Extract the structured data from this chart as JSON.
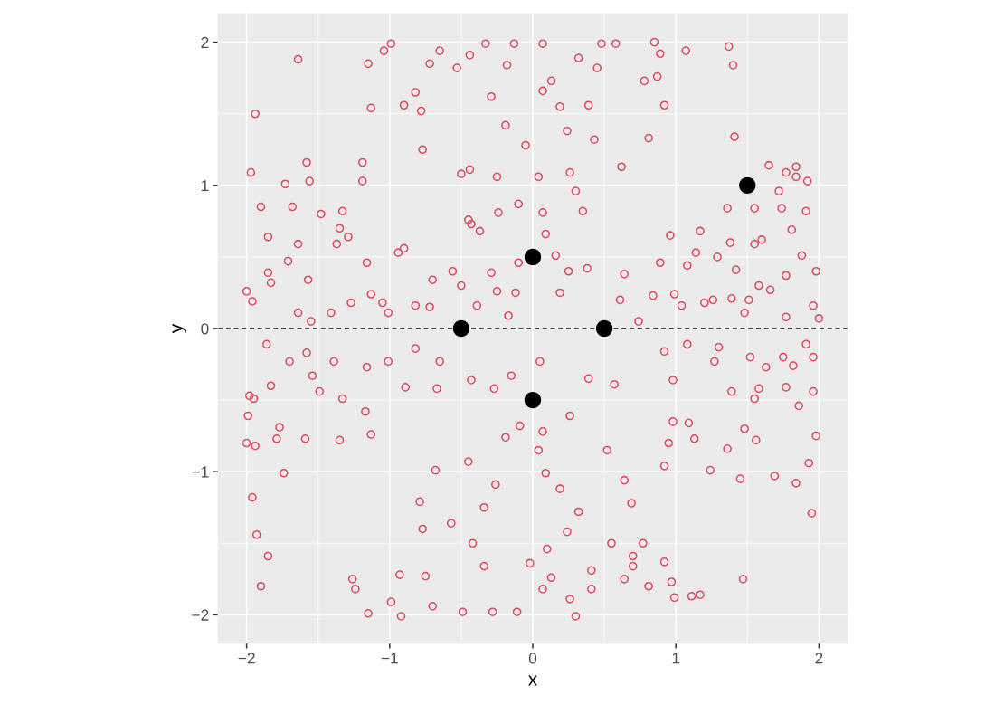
{
  "chart_data": {
    "type": "scatter",
    "xlabel": "x",
    "ylabel": "y",
    "xlim": [
      -2.2,
      2.2
    ],
    "ylim": [
      -2.2,
      2.2
    ],
    "xticks": [
      {
        "value": -2,
        "label": "−2"
      },
      {
        "value": -1,
        "label": "−1"
      },
      0,
      1,
      2
    ],
    "yticks": [
      {
        "value": -2,
        "label": "−2"
      },
      {
        "value": -1,
        "label": "−1"
      },
      0,
      1,
      2
    ],
    "grid": true,
    "marker": "circle",
    "series": [
      {
        "color": "#e34a62",
        "x": [
          -1.64,
          -1.94,
          -0.99,
          -1.04,
          -1.15,
          -1.13,
          -0.72,
          -0.65,
          -0.33,
          -0.13,
          0.07,
          0.32,
          0.48,
          0.58,
          -0.53,
          -0.82,
          -0.9,
          -0.78,
          -0.77,
          -0.5,
          -0.25,
          -0.29,
          -0.19,
          -0.05,
          0.07,
          0.19,
          0.24,
          0.04,
          0.26,
          0.3,
          0.35,
          0.43,
          0.45,
          0.62,
          0.78,
          0.87,
          0.85,
          0.92,
          0.89,
          1.07,
          1.37,
          1.4,
          1.41,
          0.81,
          0.39,
          0.13,
          -0.18,
          -0.44,
          -0.1,
          -0.44,
          1.65,
          1.77,
          1.84,
          1.92,
          1.84,
          1.72,
          1.74,
          1.91,
          1.81,
          1.55,
          1.36,
          1.38,
          1.29,
          1.42,
          1.55,
          1.6,
          1.88,
          1.98,
          1.77,
          1.66,
          1.51,
          1.58,
          1.08,
          1.14,
          1.17,
          0.96,
          0.89,
          0.99,
          1.04,
          0.84,
          0.61,
          0.64,
          0.74,
          1.2,
          1.39,
          1.96,
          2.0,
          1.77,
          1.48,
          1.26,
          0.38,
          0.25,
          0.92,
          0.98,
          1.08,
          1.3,
          1.27,
          1.52,
          1.75,
          1.96,
          1.91,
          1.63,
          1.82,
          1.58,
          1.39,
          1.55,
          1.77,
          1.96,
          1.86,
          1.98,
          1.93,
          1.95,
          1.84,
          1.69,
          1.45,
          1.56,
          1.48,
          1.13,
          0.98,
          0.92,
          1.09,
          0.95,
          1.47,
          1.24,
          1.36,
          0.52,
          0.64,
          0.69,
          0.7,
          0.7,
          0.64,
          0.92,
          0.99,
          1.11,
          1.17,
          0.97,
          0.81,
          0.77,
          0.55,
          0.41,
          0.41,
          0.3,
          0.26,
          0.13,
          0.07,
          -0.02,
          0.1,
          0.24,
          0.32,
          0.19,
          0.09,
          0.04,
          -0.09,
          -0.19,
          -0.26,
          -0.34,
          -0.42,
          -0.34,
          -0.28,
          -0.11,
          -0.49,
          -0.7,
          -0.75,
          -0.93,
          -0.99,
          -0.92,
          -1.15,
          -0.77,
          -0.57,
          -0.79,
          -0.68,
          -0.45,
          -0.27,
          -0.15,
          0.05,
          0.39,
          0.57,
          0.26,
          0.07,
          -1.83,
          -1.95,
          -1.94,
          -1.96,
          -1.93,
          -1.9,
          -1.85,
          -1.26,
          -1.24,
          -1.59,
          -1.79,
          -1.74,
          -2.0,
          -1.99,
          -1.98,
          -1.77,
          -1.49,
          -1.33,
          -1.17,
          -1.13,
          -1.35,
          -1.58,
          -1.7,
          -1.86,
          -1.54,
          -1.39,
          -1.16,
          -1.01,
          -0.82,
          -0.67,
          -0.89,
          -0.65,
          -0.43,
          -1.97,
          -1.9,
          -1.85,
          -1.83,
          -1.96,
          -2.0,
          -1.85,
          -1.73,
          -1.68,
          -1.64,
          -1.57,
          -1.58,
          -1.56,
          -1.71,
          -1.48,
          -1.33,
          -1.35,
          -1.29,
          -1.37,
          -1.19,
          -1.19,
          -1.16,
          -1.13,
          -0.94,
          -0.9,
          -1.27,
          -1.05,
          -1.41,
          -1.55,
          -1.64,
          -0.82,
          -0.7,
          -0.56,
          -0.5,
          -0.72,
          -1.01,
          -0.43,
          -0.45,
          -0.37,
          -0.29,
          -0.25,
          -0.12,
          -0.1,
          -0.24,
          0.07,
          0.09,
          0.16,
          0.19,
          -0.17,
          -0.39
        ],
        "values": [
          1.88,
          1.5,
          1.99,
          1.94,
          1.85,
          1.54,
          1.85,
          1.94,
          1.99,
          1.99,
          1.99,
          1.89,
          1.99,
          1.99,
          1.82,
          1.65,
          1.56,
          1.52,
          1.25,
          1.08,
          1.06,
          1.62,
          1.42,
          1.28,
          1.66,
          1.55,
          1.38,
          1.06,
          1.09,
          0.96,
          0.82,
          1.32,
          1.82,
          1.13,
          1.73,
          1.76,
          2.0,
          1.56,
          1.92,
          1.94,
          1.97,
          1.84,
          1.34,
          1.33,
          1.56,
          1.73,
          1.84,
          1.91,
          0.87,
          1.11,
          1.14,
          1.09,
          1.06,
          1.03,
          1.13,
          0.96,
          0.84,
          0.82,
          0.69,
          0.84,
          0.84,
          0.6,
          0.5,
          0.41,
          0.59,
          0.62,
          0.51,
          0.4,
          0.37,
          0.27,
          0.2,
          0.3,
          0.44,
          0.53,
          0.68,
          0.65,
          0.46,
          0.24,
          0.16,
          0.23,
          0.2,
          0.38,
          0.05,
          0.18,
          0.21,
          0.16,
          0.07,
          0.08,
          0.11,
          0.2,
          0.42,
          0.4,
          -0.16,
          -0.36,
          -0.11,
          -0.13,
          -0.23,
          -0.2,
          -0.2,
          -0.2,
          -0.11,
          -0.27,
          -0.26,
          -0.42,
          -0.44,
          -0.49,
          -0.41,
          -0.44,
          -0.54,
          -0.75,
          -0.94,
          -1.29,
          -1.08,
          -1.03,
          -1.05,
          -0.78,
          -0.7,
          -0.77,
          -0.65,
          -0.96,
          -0.66,
          -0.8,
          -1.75,
          -0.99,
          -0.84,
          -0.85,
          -1.06,
          -1.22,
          -1.59,
          -1.66,
          -1.75,
          -1.63,
          -1.88,
          -1.87,
          -1.86,
          -1.77,
          -1.8,
          -1.5,
          -1.5,
          -1.69,
          -1.82,
          -2.01,
          -1.89,
          -1.74,
          -1.82,
          -1.64,
          -1.54,
          -1.42,
          -1.28,
          -1.12,
          -1.01,
          -0.85,
          -0.68,
          -0.76,
          -1.09,
          -1.25,
          -1.5,
          -1.66,
          -1.98,
          -1.98,
          -1.98,
          -1.94,
          -1.73,
          -1.72,
          -1.91,
          -2.01,
          -1.99,
          -1.4,
          -1.36,
          -1.21,
          -0.99,
          -0.93,
          -0.42,
          -0.33,
          -0.23,
          -0.35,
          -0.39,
          -0.61,
          -0.72,
          -0.4,
          -0.49,
          -0.82,
          -1.18,
          -1.44,
          -1.8,
          -1.59,
          -1.75,
          -1.82,
          -0.77,
          -0.77,
          -1.01,
          -0.8,
          -0.61,
          -0.47,
          -0.69,
          -0.44,
          -0.49,
          -0.58,
          -0.74,
          -0.78,
          -0.17,
          -0.23,
          -0.11,
          -0.33,
          -0.23,
          -0.27,
          -0.23,
          -0.14,
          -0.42,
          -0.41,
          -0.23,
          -0.36,
          1.09,
          0.85,
          0.64,
          0.32,
          0.19,
          0.26,
          0.39,
          1.01,
          0.85,
          0.59,
          0.34,
          1.16,
          1.03,
          0.47,
          0.8,
          0.82,
          0.7,
          0.64,
          0.59,
          1.16,
          1.03,
          0.46,
          0.24,
          0.53,
          0.56,
          0.18,
          0.18,
          0.11,
          0.05,
          0.11,
          0.16,
          0.34,
          0.4,
          0.3,
          0.15,
          0.11,
          0.73,
          0.76,
          0.68,
          0.39,
          0.26,
          0.25,
          0.46,
          0.81,
          0.81,
          0.66,
          0.51,
          0.25,
          0.09,
          0.16
        ]
      },
      {
        "color": "#000000",
        "x": [
          -0.5,
          0,
          0.5,
          0,
          1.5
        ],
        "values": [
          0,
          0.5,
          0,
          -0.5,
          1
        ]
      }
    ],
    "ref_lines": [
      {
        "axis": "y",
        "value": 0,
        "color": "#000000",
        "line_style": "dashed"
      }
    ]
  }
}
